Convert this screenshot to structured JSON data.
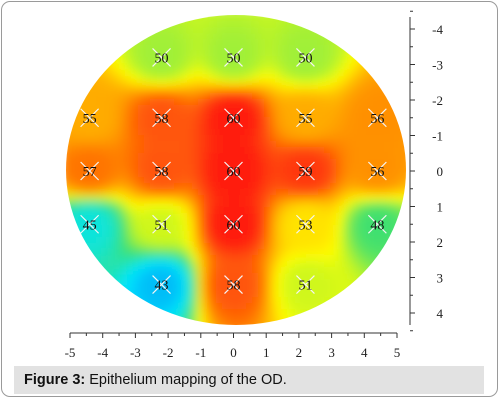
{
  "chart_data": {
    "type": "heatmap",
    "title": "",
    "xlabel": "",
    "ylabel": "",
    "xlim": [
      -5,
      5
    ],
    "ylim": [
      -4,
      4
    ],
    "y_inverted": true,
    "y_axis_side": "right",
    "x_ticks": [
      -5,
      -4,
      -3,
      -2,
      -1,
      0,
      1,
      2,
      3,
      4,
      5
    ],
    "y_ticks": [
      -4,
      -3,
      -2,
      -1,
      0,
      1,
      2,
      3,
      4
    ],
    "colorscale": [
      "#1840e0",
      "#00e6ff",
      "#40e070",
      "#ffff00",
      "#ff9000",
      "#ff1a10"
    ],
    "value_range": [
      40,
      60
    ],
    "points": [
      {
        "x": -2.2,
        "y": -3.2,
        "label": "50"
      },
      {
        "x": 0,
        "y": -3.2,
        "label": "50"
      },
      {
        "x": 2.2,
        "y": -3.2,
        "label": "50"
      },
      {
        "x": -4.4,
        "y": -1.5,
        "label": "55"
      },
      {
        "x": -2.2,
        "y": -1.5,
        "label": "58"
      },
      {
        "x": 0,
        "y": -1.5,
        "label": "60"
      },
      {
        "x": 2.2,
        "y": -1.5,
        "label": "55"
      },
      {
        "x": 4.4,
        "y": -1.5,
        "label": "56"
      },
      {
        "x": -4.4,
        "y": 0,
        "label": "57"
      },
      {
        "x": -2.2,
        "y": 0,
        "label": "58"
      },
      {
        "x": 0,
        "y": 0,
        "label": "60"
      },
      {
        "x": 2.2,
        "y": 0,
        "label": "59"
      },
      {
        "x": 4.4,
        "y": 0,
        "label": "56"
      },
      {
        "x": -4.4,
        "y": 1.5,
        "label": "45"
      },
      {
        "x": -2.2,
        "y": 1.5,
        "label": "51"
      },
      {
        "x": 0,
        "y": 1.5,
        "label": "60"
      },
      {
        "x": 2.2,
        "y": 1.5,
        "label": "53"
      },
      {
        "x": 4.4,
        "y": 1.5,
        "label": "48"
      },
      {
        "x": -2.2,
        "y": 3.2,
        "label": "43"
      },
      {
        "x": 0,
        "y": 3.2,
        "label": "58"
      },
      {
        "x": 2.2,
        "y": 3.2,
        "label": "51"
      }
    ]
  },
  "caption": {
    "label": "Figure 3:",
    "text": " Epithelium mapping of the OD."
  }
}
